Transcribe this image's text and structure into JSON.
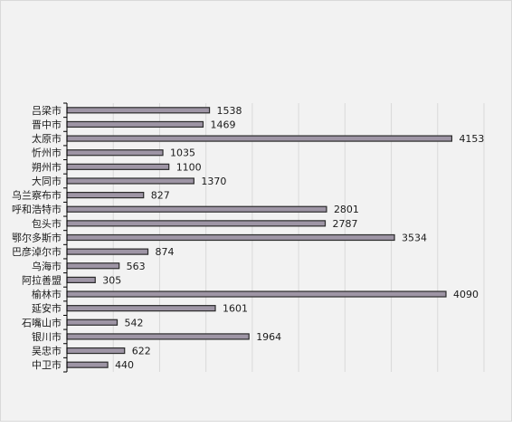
{
  "chart_data": {
    "type": "bar",
    "orientation": "horizontal",
    "title": "",
    "xlabel": "",
    "ylabel": "",
    "categories": [
      "吕梁市",
      "晋中市",
      "太原市",
      "忻州市",
      "朔州市",
      "大同市",
      "乌兰察布市",
      "呼和浩特市",
      "包头市",
      "鄂尔多斯市",
      "巴彦淖尔市",
      "乌海市",
      "阿拉善盟",
      "榆林市",
      "延安市",
      "石嘴山市",
      "银川市",
      "吴忠市",
      "中卫市"
    ],
    "values": [
      1538,
      1469,
      4153,
      1035,
      1100,
      1370,
      827,
      2801,
      2787,
      3534,
      874,
      563,
      305,
      4090,
      1601,
      542,
      1964,
      622,
      440
    ],
    "xlim": [
      0,
      4500
    ],
    "grid": "vertical",
    "legend": "none",
    "colors": {
      "bar": "#9e95a5",
      "bar_border": "#2b2b2b",
      "grid": "#d9d9d9",
      "axis": "#000000",
      "background": "#f2f2f2"
    }
  }
}
